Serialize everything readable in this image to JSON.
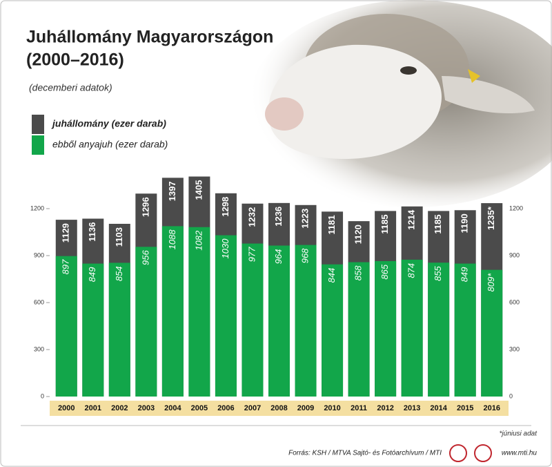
{
  "chart_data": {
    "type": "overlap-bar",
    "title": "Juhállomány Magyarországon",
    "period": "(2000–2016)",
    "subtitle": "(decemberi adatok)",
    "categories": [
      "2000",
      "2001",
      "2002",
      "2003",
      "2004",
      "2005",
      "2006",
      "2007",
      "2008",
      "2009",
      "2010",
      "2011",
      "2012",
      "2013",
      "2014",
      "2015",
      "2016"
    ],
    "series": [
      {
        "name": "juhállomány (ezer darab)",
        "color": "#4b4b4b",
        "values": [
          1129,
          1136,
          1103,
          1296,
          1397,
          1405,
          1298,
          1232,
          1236,
          1223,
          1181,
          1120,
          1185,
          1214,
          1185,
          1190,
          1235
        ],
        "value_labels": [
          "1129",
          "1136",
          "1103",
          "1296",
          "1397",
          "1405",
          "1298",
          "1232",
          "1236",
          "1223",
          "1181",
          "1120",
          "1185",
          "1214",
          "1185",
          "1190",
          "1235*"
        ]
      },
      {
        "name": "ebből anyajuh (ezer darab)",
        "color": "#12a64a",
        "values": [
          897,
          849,
          854,
          956,
          1088,
          1082,
          1030,
          977,
          964,
          968,
          844,
          858,
          865,
          874,
          855,
          849,
          809
        ],
        "value_labels": [
          "897",
          "849",
          "854",
          "956",
          "1088",
          "1082",
          "1030",
          "977",
          "964",
          "968",
          "844",
          "858",
          "865",
          "874",
          "855",
          "849",
          "809*"
        ]
      }
    ],
    "ylim": [
      0,
      1500
    ],
    "yticks": [
      0,
      300,
      600,
      900,
      1200
    ],
    "y2lim": [
      0,
      1500
    ],
    "y2ticks": [
      0,
      300,
      600,
      900,
      1200
    ],
    "footnote": "*júniusi adat",
    "source": "Forrás: KSH / MTVA Sajtó- és Fotóarchívum / MTI",
    "website": "www.mti.hu"
  }
}
